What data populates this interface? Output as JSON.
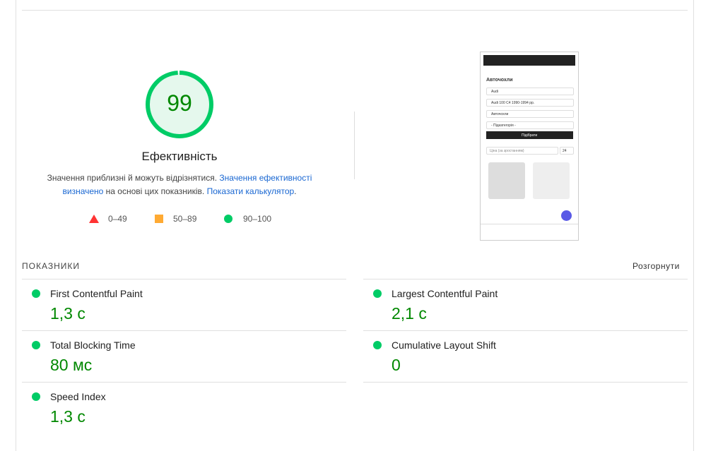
{
  "score": {
    "value": 99,
    "label": "Ефективність"
  },
  "description": {
    "text1": "Значення приблизні й можуть відрізнятися.",
    "link1": "Значення ефективності визначено",
    "text2": "на основі цих показників.",
    "link2": "Показати калькулятор",
    "text3": "."
  },
  "legend": [
    {
      "range": "0–49"
    },
    {
      "range": "50–89"
    },
    {
      "range": "90–100"
    }
  ],
  "screenshot": {
    "heading": "Авточохли",
    "selects": [
      "Audi",
      "Audi 100 C4 1990-1994 рр.",
      "Авточохли",
      "- Підкатегорія -"
    ],
    "button": "Підібрати",
    "sort": "Ціна (за зростанням)",
    "per_page": "24"
  },
  "metrics": {
    "title": "ПОКАЗНИКИ",
    "expand": "Розгорнути",
    "items": [
      {
        "name": "First Contentful Paint",
        "value": "1,3 с"
      },
      {
        "name": "Largest Contentful Paint",
        "value": "2,1 с"
      },
      {
        "name": "Total Blocking Time",
        "value": "80 мс"
      },
      {
        "name": "Cumulative Layout Shift",
        "value": "0"
      },
      {
        "name": "Speed Index",
        "value": "1,3 с"
      }
    ]
  }
}
